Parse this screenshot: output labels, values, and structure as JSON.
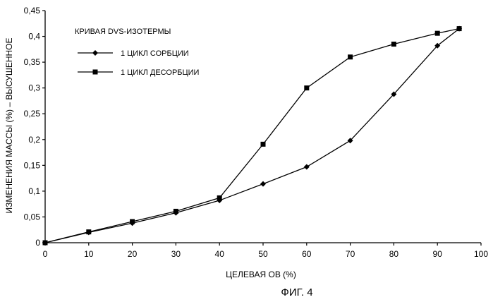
{
  "figure_caption": "ФИГ. 4",
  "chart_data": {
    "type": "line",
    "title": "КРИВАЯ DVS-ИЗОТЕРМЫ",
    "xlabel": "ЦЕЛЕВАЯ ОВ (%)",
    "ylabel": "ИЗМЕНЕНИЯ МАССЫ (%) – ВЫСУШЕННОЕ",
    "xlim": [
      0,
      100
    ],
    "ylim": [
      0,
      0.45
    ],
    "x_ticks": [
      "0",
      "10",
      "20",
      "30",
      "40",
      "50",
      "60",
      "70",
      "80",
      "90",
      "100"
    ],
    "x_tick_values": [
      0,
      10,
      20,
      30,
      40,
      50,
      60,
      70,
      80,
      90,
      100
    ],
    "y_ticks": [
      "0",
      "0,05",
      "0,1",
      "0,15",
      "0,2",
      "0,25",
      "0,3",
      "0,35",
      "0,4",
      "0,45"
    ],
    "y_tick_values": [
      0,
      0.05,
      0.1,
      0.15,
      0.2,
      0.25,
      0.3,
      0.35,
      0.4,
      0.45
    ],
    "grid": false,
    "legend_position": "top-left",
    "series": [
      {
        "name": "1 ЦИКЛ СОРБЦИИ",
        "marker": "diamond",
        "x": [
          0,
          10,
          20,
          30,
          40,
          50,
          60,
          70,
          80,
          90,
          95
        ],
        "y": [
          0,
          0.02,
          0.038,
          0.058,
          0.082,
          0.114,
          0.147,
          0.198,
          0.288,
          0.382,
          0.415
        ]
      },
      {
        "name": "1 ЦИКЛ ДЕСОРБЦИИ",
        "marker": "square",
        "x": [
          0,
          10,
          20,
          30,
          40,
          50,
          60,
          70,
          80,
          90,
          95
        ],
        "y": [
          0,
          0.021,
          0.041,
          0.061,
          0.087,
          0.191,
          0.3,
          0.36,
          0.385,
          0.406,
          0.415
        ]
      }
    ]
  }
}
